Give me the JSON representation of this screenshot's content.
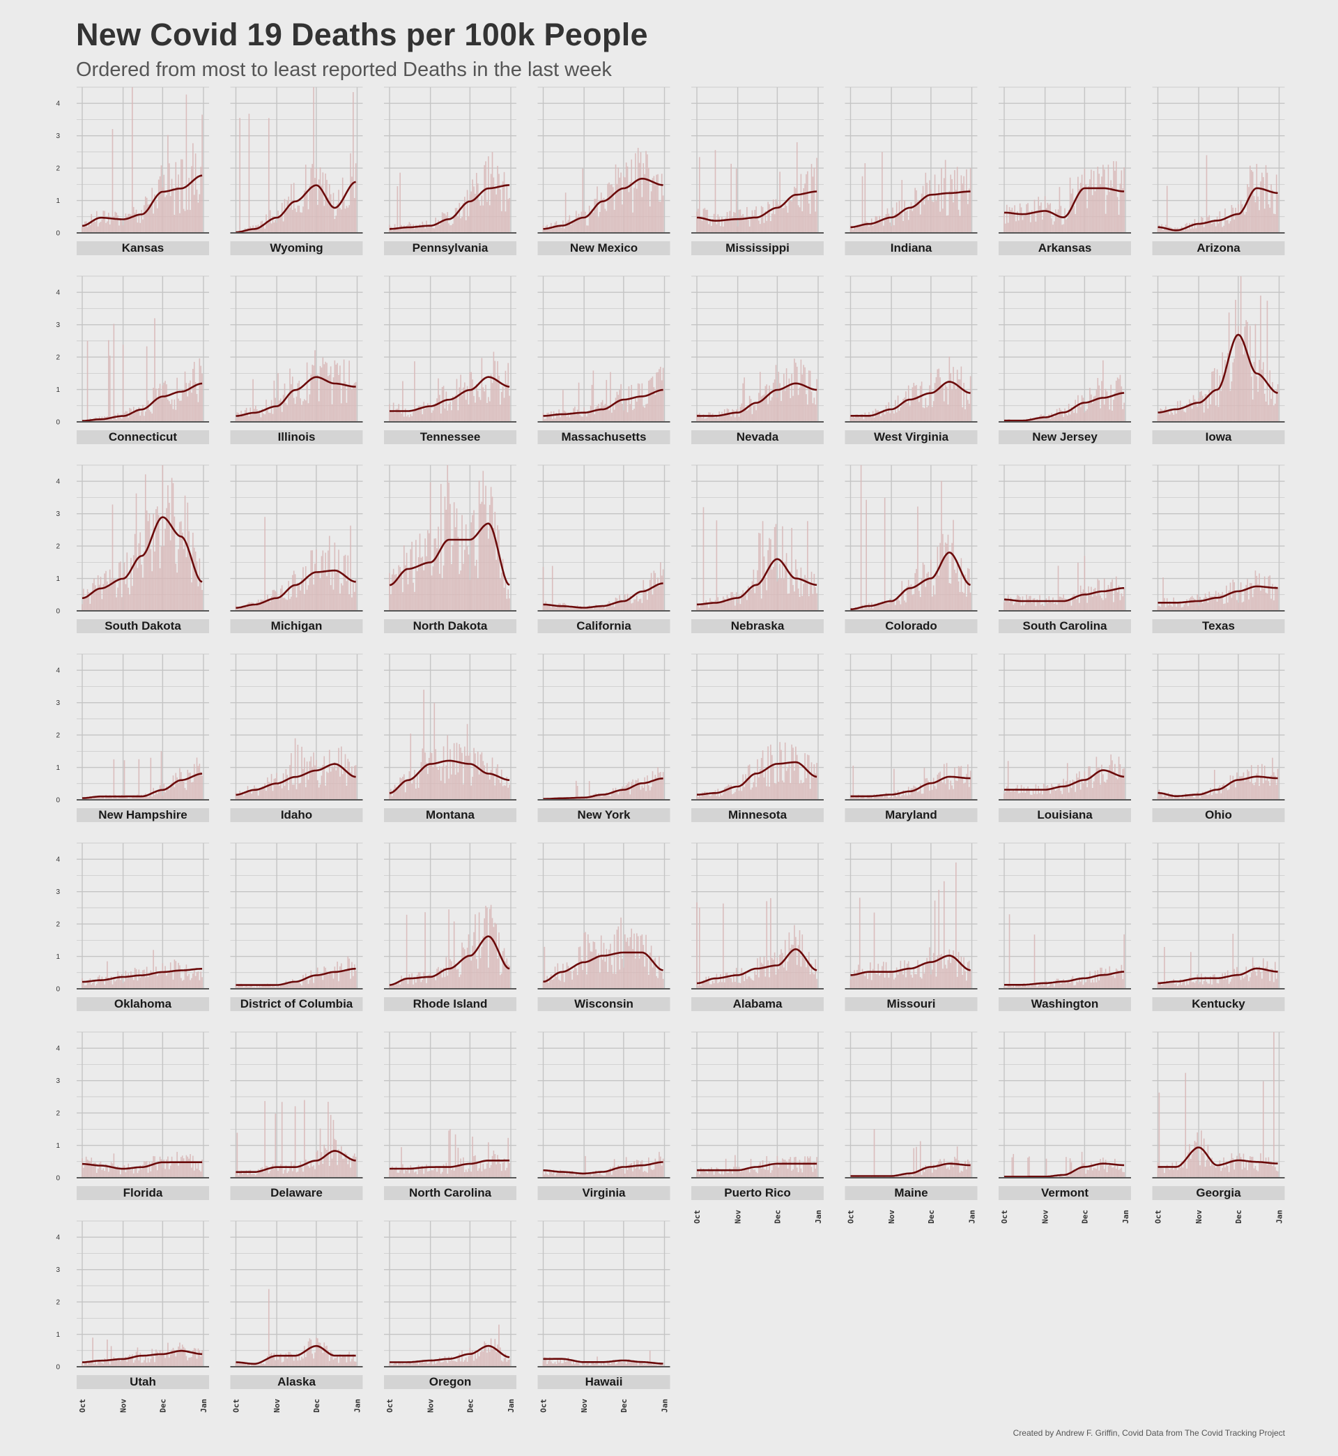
{
  "title": "New Covid 19 Deaths per 100k People",
  "subtitle": "Ordered from most to least reported Deaths in the last week",
  "caption": "Created by Andrew F. Griffin, Covid Data from The Covid Tracking Project",
  "colors": {
    "background": "#ebebeb",
    "grid": "#c4c4c4",
    "bars": "#d8b8b8",
    "line": "#6b0a0a",
    "strip": "#d4d4d4",
    "baseline": "#555555"
  },
  "chart_data": {
    "type": "line",
    "title": "New Covid 19 Deaths per 100k People",
    "subtitle": "Ordered from most to least reported Deaths in the last week",
    "x_ticks": [
      "Oct",
      "Nov",
      "Dec",
      "Jan"
    ],
    "y_ticks": [
      0,
      1,
      2,
      3,
      4
    ],
    "ylim": [
      0,
      4.5
    ],
    "layout": "faceted small multiples, 8 columns, shared y axis",
    "series_encoding": "bars = daily new deaths per 100k; line = 7-day rolling average",
    "x_sample_points": [
      "Oct 1",
      "Oct 15",
      "Nov 1",
      "Nov 15",
      "Dec 1",
      "Dec 15",
      "Dec 31"
    ],
    "panels": [
      {
        "state": "Kansas",
        "avg": [
          0.25,
          0.5,
          0.45,
          0.6,
          1.3,
          1.4,
          1.8
        ],
        "peak": 4.5
      },
      {
        "state": "Wyoming",
        "avg": [
          0.05,
          0.15,
          0.5,
          1.0,
          1.5,
          0.8,
          1.6
        ],
        "peak": 4.5
      },
      {
        "state": "Pennsylvania",
        "avg": [
          0.15,
          0.2,
          0.25,
          0.45,
          1.0,
          1.4,
          1.5
        ],
        "peak": 2.5
      },
      {
        "state": "New Mexico",
        "avg": [
          0.15,
          0.25,
          0.5,
          1.0,
          1.4,
          1.7,
          1.5
        ],
        "peak": 2.2
      },
      {
        "state": "Mississippi",
        "avg": [
          0.5,
          0.4,
          0.45,
          0.5,
          0.8,
          1.2,
          1.3
        ],
        "peak": 2.8
      },
      {
        "state": "Indiana",
        "avg": [
          0.2,
          0.3,
          0.5,
          0.8,
          1.2,
          1.25,
          1.3
        ],
        "peak": 2.5
      },
      {
        "state": "Arkansas",
        "avg": [
          0.65,
          0.6,
          0.7,
          0.5,
          1.4,
          1.4,
          1.3
        ],
        "peak": 2.2
      },
      {
        "state": "Arizona",
        "avg": [
          0.2,
          0.1,
          0.3,
          0.4,
          0.6,
          1.4,
          1.25
        ],
        "peak": 2.4
      },
      {
        "state": "Connecticut",
        "avg": [
          0.05,
          0.1,
          0.2,
          0.4,
          0.8,
          0.95,
          1.2
        ],
        "peak": 3.2
      },
      {
        "state": "Illinois",
        "avg": [
          0.2,
          0.3,
          0.5,
          1.0,
          1.4,
          1.2,
          1.1
        ],
        "peak": 2.0
      },
      {
        "state": "Tennessee",
        "avg": [
          0.35,
          0.35,
          0.5,
          0.7,
          1.0,
          1.4,
          1.1
        ],
        "peak": 2.0
      },
      {
        "state": "Massachusetts",
        "avg": [
          0.2,
          0.25,
          0.3,
          0.4,
          0.7,
          0.8,
          1.0
        ],
        "peak": 1.7
      },
      {
        "state": "Nevada",
        "avg": [
          0.2,
          0.2,
          0.3,
          0.6,
          1.0,
          1.2,
          1.0
        ],
        "peak": 1.8
      },
      {
        "state": "West Virginia",
        "avg": [
          0.2,
          0.2,
          0.4,
          0.7,
          0.9,
          1.25,
          0.9
        ],
        "peak": 2.0
      },
      {
        "state": "New Jersey",
        "avg": [
          0.05,
          0.05,
          0.15,
          0.3,
          0.6,
          0.75,
          0.9
        ],
        "peak": 1.9
      },
      {
        "state": "Iowa",
        "avg": [
          0.3,
          0.4,
          0.6,
          1.0,
          2.7,
          1.5,
          0.9
        ],
        "peak": 4.5
      },
      {
        "state": "South Dakota",
        "avg": [
          0.4,
          0.7,
          1.0,
          1.7,
          2.9,
          2.3,
          0.9
        ],
        "peak": 4.5
      },
      {
        "state": "Michigan",
        "avg": [
          0.1,
          0.2,
          0.4,
          0.8,
          1.2,
          1.25,
          0.9
        ],
        "peak": 2.9
      },
      {
        "state": "North Dakota",
        "avg": [
          0.8,
          1.3,
          1.5,
          2.2,
          2.2,
          2.7,
          0.8
        ],
        "peak": 4.5
      },
      {
        "state": "California",
        "avg": [
          0.2,
          0.15,
          0.1,
          0.15,
          0.3,
          0.6,
          0.85
        ],
        "peak": 1.5
      },
      {
        "state": "Nebraska",
        "avg": [
          0.2,
          0.25,
          0.4,
          0.8,
          1.6,
          1.0,
          0.8
        ],
        "peak": 3.2
      },
      {
        "state": "Colorado",
        "avg": [
          0.05,
          0.15,
          0.3,
          0.7,
          1.0,
          1.8,
          0.8
        ],
        "peak": 4.5
      },
      {
        "state": "South Carolina",
        "avg": [
          0.35,
          0.3,
          0.3,
          0.3,
          0.5,
          0.6,
          0.7
        ],
        "peak": 1.7
      },
      {
        "state": "Texas",
        "avg": [
          0.25,
          0.25,
          0.3,
          0.4,
          0.6,
          0.75,
          0.7
        ],
        "peak": 1.2
      },
      {
        "state": "New Hampshire",
        "avg": [
          0.05,
          0.1,
          0.1,
          0.1,
          0.3,
          0.6,
          0.8
        ],
        "peak": 1.5
      },
      {
        "state": "Idaho",
        "avg": [
          0.15,
          0.3,
          0.5,
          0.7,
          0.9,
          1.1,
          0.7
        ],
        "peak": 1.9
      },
      {
        "state": "Montana",
        "avg": [
          0.2,
          0.6,
          1.1,
          1.2,
          1.1,
          0.8,
          0.6
        ],
        "peak": 3.4
      },
      {
        "state": "New York",
        "avg": [
          0.02,
          0.04,
          0.06,
          0.15,
          0.3,
          0.5,
          0.65
        ],
        "peak": 0.7
      },
      {
        "state": "Minnesota",
        "avg": [
          0.15,
          0.2,
          0.4,
          0.8,
          1.1,
          1.15,
          0.7
        ],
        "peak": 1.7
      },
      {
        "state": "Maryland",
        "avg": [
          0.1,
          0.1,
          0.15,
          0.25,
          0.5,
          0.7,
          0.65
        ],
        "peak": 1.1
      },
      {
        "state": "Louisiana",
        "avg": [
          0.3,
          0.3,
          0.3,
          0.4,
          0.6,
          0.9,
          0.7
        ],
        "peak": 1.4
      },
      {
        "state": "Ohio",
        "avg": [
          0.2,
          0.1,
          0.15,
          0.3,
          0.6,
          0.7,
          0.65
        ],
        "peak": 1.3
      },
      {
        "state": "Oklahoma",
        "avg": [
          0.2,
          0.25,
          0.35,
          0.4,
          0.5,
          0.55,
          0.6
        ],
        "peak": 1.2
      },
      {
        "state": "District of Columbia",
        "avg": [
          0.1,
          0.1,
          0.1,
          0.2,
          0.4,
          0.5,
          0.6
        ],
        "peak": 1.0
      },
      {
        "state": "Rhode Island",
        "avg": [
          0.1,
          0.3,
          0.35,
          0.6,
          1.0,
          1.6,
          0.6
        ],
        "peak": 2.5
      },
      {
        "state": "Wisconsin",
        "avg": [
          0.2,
          0.5,
          0.8,
          1.0,
          1.1,
          1.1,
          0.55
        ],
        "peak": 2.2
      },
      {
        "state": "Alabama",
        "avg": [
          0.15,
          0.3,
          0.4,
          0.6,
          0.7,
          1.2,
          0.55
        ],
        "peak": 2.8
      },
      {
        "state": "Missouri",
        "avg": [
          0.4,
          0.5,
          0.5,
          0.6,
          0.8,
          1.0,
          0.55
        ],
        "peak": 3.9
      },
      {
        "state": "Washington",
        "avg": [
          0.1,
          0.1,
          0.15,
          0.2,
          0.3,
          0.4,
          0.5
        ],
        "peak": 2.3
      },
      {
        "state": "Kentucky",
        "avg": [
          0.15,
          0.2,
          0.3,
          0.3,
          0.4,
          0.6,
          0.5
        ],
        "peak": 1.7
      },
      {
        "state": "Florida",
        "avg": [
          0.4,
          0.35,
          0.25,
          0.3,
          0.45,
          0.45,
          0.45
        ],
        "peak": 0.8
      },
      {
        "state": "Delaware",
        "avg": [
          0.15,
          0.15,
          0.3,
          0.3,
          0.5,
          0.8,
          0.5
        ],
        "peak": 2.4
      },
      {
        "state": "North Carolina",
        "avg": [
          0.25,
          0.25,
          0.3,
          0.3,
          0.4,
          0.5,
          0.5
        ],
        "peak": 1.5
      },
      {
        "state": "Virginia",
        "avg": [
          0.2,
          0.15,
          0.1,
          0.15,
          0.3,
          0.35,
          0.45
        ],
        "peak": 0.8
      },
      {
        "state": "Puerto Rico",
        "avg": [
          0.2,
          0.2,
          0.2,
          0.3,
          0.4,
          0.4,
          0.4
        ],
        "peak": 0.7
      },
      {
        "state": "Maine",
        "avg": [
          0.02,
          0.02,
          0.02,
          0.1,
          0.3,
          0.4,
          0.35
        ],
        "peak": 1.5
      },
      {
        "state": "Vermont",
        "avg": [
          0.0,
          0.0,
          0.0,
          0.05,
          0.3,
          0.4,
          0.35
        ],
        "peak": 0.8
      },
      {
        "state": "Georgia",
        "avg": [
          0.3,
          0.3,
          0.9,
          0.35,
          0.5,
          0.45,
          0.4
        ],
        "peak": 4.5
      },
      {
        "state": "Utah",
        "avg": [
          0.1,
          0.15,
          0.2,
          0.3,
          0.35,
          0.45,
          0.35
        ],
        "peak": 0.9
      },
      {
        "state": "Alaska",
        "avg": [
          0.1,
          0.05,
          0.3,
          0.3,
          0.6,
          0.3,
          0.3
        ],
        "peak": 2.4
      },
      {
        "state": "Oregon",
        "avg": [
          0.1,
          0.1,
          0.15,
          0.2,
          0.35,
          0.6,
          0.25
        ],
        "peak": 1.3
      },
      {
        "state": "Hawaii",
        "avg": [
          0.2,
          0.2,
          0.1,
          0.1,
          0.15,
          0.1,
          0.05
        ],
        "peak": 0.5
      }
    ]
  }
}
